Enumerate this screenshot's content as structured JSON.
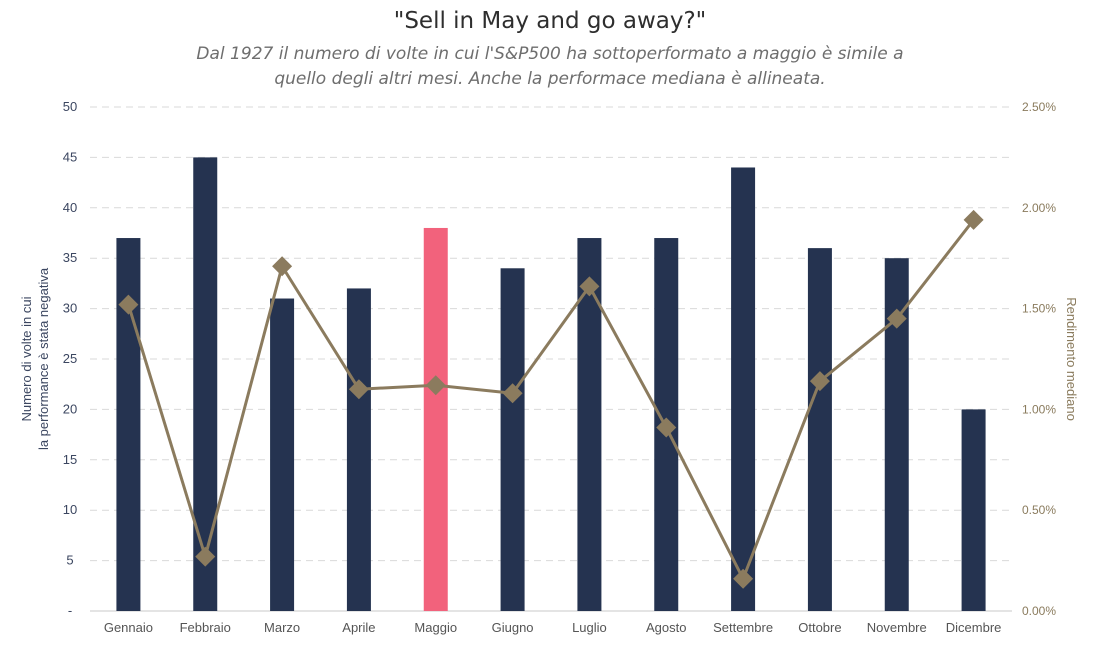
{
  "chart_data": {
    "type": "bar",
    "title": "\"Sell in May and go away?\"",
    "subtitle_lines": [
      "Dal 1927 il numero di volte in cui l'S&P500 ha sottoperformato a maggio è simile a",
      "quello degli altri mesi. Anche la performace mediana è allineata."
    ],
    "categories": [
      "Gennaio",
      "Febbraio",
      "Marzo",
      "Aprile",
      "Maggio",
      "Giugno",
      "Luglio",
      "Agosto",
      "Settembre",
      "Ottobre",
      "Novembre",
      "Dicembre"
    ],
    "series": [
      {
        "type": "bar",
        "axis": "left",
        "values": [
          37,
          45,
          31,
          32,
          38,
          34,
          37,
          37,
          44,
          36,
          35,
          20
        ],
        "color": "#253350",
        "highlight_index": 4,
        "highlight_color": "#f2627c"
      },
      {
        "type": "line",
        "axis": "right",
        "marker": "diamond",
        "values": [
          1.52,
          0.27,
          1.71,
          1.1,
          1.12,
          1.08,
          1.61,
          0.91,
          0.16,
          1.14,
          1.45,
          1.94
        ],
        "color": "#8b7b5e"
      }
    ],
    "ylabel_left_lines": [
      "Numero di volte in cui",
      "la performance è stata negativa"
    ],
    "ylabel_right": "Rendimento mediano",
    "ylim_left": [
      0,
      50
    ],
    "yticks_left": [
      "-",
      "5",
      "10",
      "15",
      "20",
      "25",
      "30",
      "35",
      "40",
      "45",
      "50"
    ],
    "ylim_right": [
      0,
      2.5
    ],
    "yticks_right": [
      "0.00%",
      "0.50%",
      "1.00%",
      "1.50%",
      "2.00%",
      "2.50%"
    ],
    "grid": "horizontal-dashed",
    "legend": "none"
  }
}
